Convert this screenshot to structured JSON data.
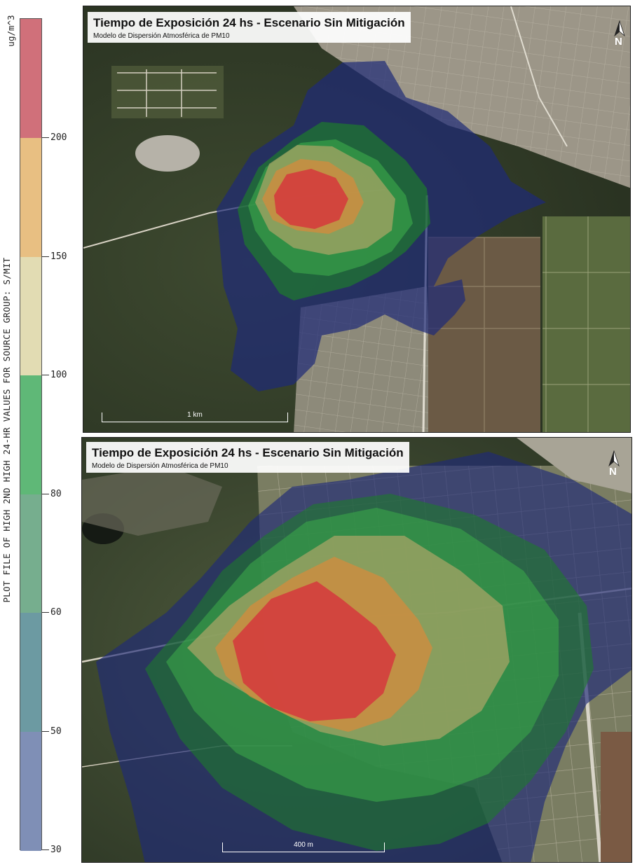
{
  "legend": {
    "axis_title": "PLOT FILE OF HIGH 2ND HIGH 24-HR VALUES FOR SOURCE GROUP: S/MIT",
    "unit": "ug/m^3",
    "segments": [
      {
        "color": "#d0707a"
      },
      {
        "color": "#e8bf82"
      },
      {
        "color": "#e2dcb3"
      },
      {
        "color": "#5fb877"
      },
      {
        "color": "#76ae8e"
      },
      {
        "color": "#6c9aa2"
      },
      {
        "color": "#7f8fb6"
      }
    ],
    "ticks": [
      "200",
      "150",
      "100",
      "80",
      "60",
      "50",
      "30"
    ]
  },
  "maps": [
    {
      "title": "Tiempo de Exposición 24 hs - Escenario Sin Mitigación",
      "subtitle": "Modelo de Dispersión Atmosférica de PM10",
      "north_label": "N",
      "scale_label": "1 km"
    },
    {
      "title": "Tiempo de Exposición 24 hs - Escenario Sin Mitigación",
      "subtitle": "Modelo de Dispersión Atmosférica de PM10",
      "north_label": "N",
      "scale_label": "400 m"
    }
  ],
  "contour_colors": {
    "blue": "#1e2a78",
    "dark_green": "#1e7a2c",
    "green": "#3aa64a",
    "khaki": "#b8a86a",
    "orange": "#d98a3a",
    "red": "#d6323c"
  }
}
